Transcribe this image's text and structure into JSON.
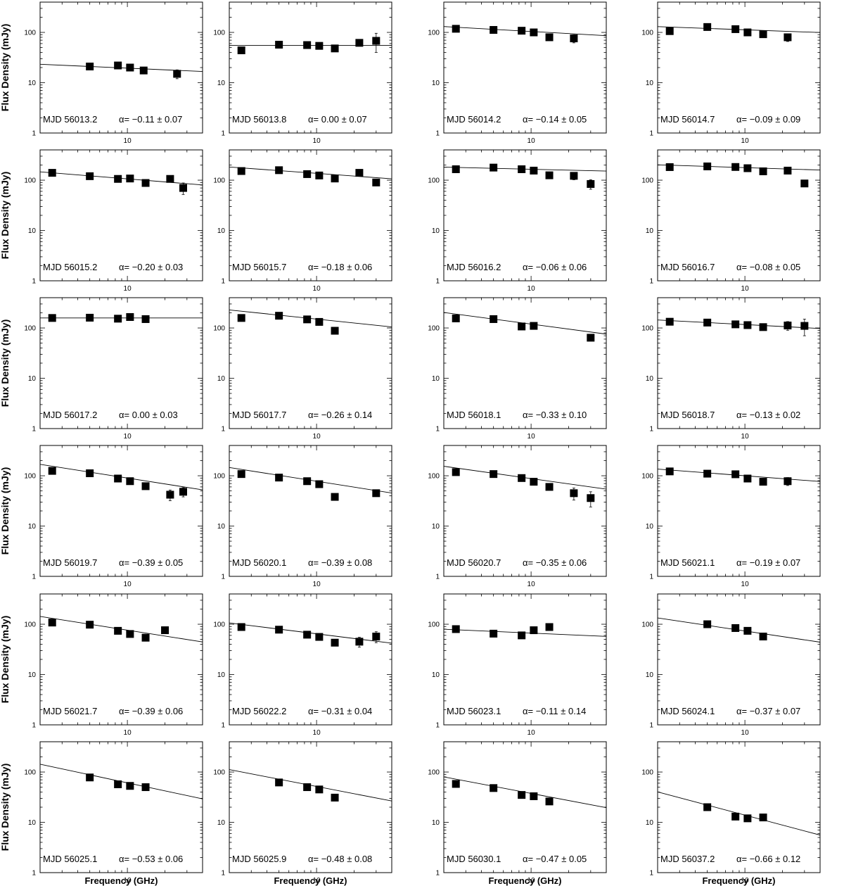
{
  "figure": {
    "ylabel": "Flux Density (mJy)",
    "xlabel": "Frequency (GHz)",
    "x_ticks": [
      10
    ],
    "y_ticks": [
      1,
      10,
      100
    ]
  },
  "chart_data": [
    {
      "type": "scatter",
      "mjd": "MJD 56013.2",
      "alpha": "α= −0.11 ± 0.07",
      "xlim": [
        2,
        40
      ],
      "ylim": [
        1,
        400
      ],
      "xscale": "log",
      "yscale": "log",
      "x": [
        5,
        8.4,
        10.5,
        13.5,
        25
      ],
      "y": [
        21,
        22,
        20,
        17.5,
        15
      ],
      "yerr": [
        0,
        0,
        0,
        0,
        3
      ],
      "fit": {
        "index": -0.11,
        "at5": 21
      }
    },
    {
      "type": "scatter",
      "mjd": "MJD 56013.8",
      "alpha": "α=  0.00 ± 0.07",
      "xlim": [
        2,
        40
      ],
      "ylim": [
        1,
        400
      ],
      "xscale": "log",
      "yscale": "log",
      "x": [
        2.5,
        5,
        8.4,
        10.5,
        14,
        22,
        30
      ],
      "y": [
        44,
        57,
        56,
        54,
        48,
        62,
        68
      ],
      "yerr": [
        0,
        0,
        0,
        0,
        0,
        0,
        28
      ],
      "fit": {
        "index": 0.0,
        "at5": 55
      }
    },
    {
      "type": "scatter",
      "mjd": "MJD 56014.2",
      "alpha": "α= −0.14 ± 0.05",
      "xlim": [
        2,
        40
      ],
      "ylim": [
        1,
        400
      ],
      "xscale": "log",
      "yscale": "log",
      "x": [
        2.5,
        5,
        8.4,
        10.5,
        14,
        22
      ],
      "y": [
        118,
        112,
        108,
        100,
        80,
        76
      ],
      "yerr": [
        0,
        0,
        0,
        0,
        0,
        14
      ],
      "fit": {
        "index": -0.14,
        "at5": 115
      }
    },
    {
      "type": "scatter",
      "mjd": "MJD 56014.7",
      "alpha": "α= −0.09 ± 0.09",
      "xlim": [
        2,
        40
      ],
      "ylim": [
        1,
        400
      ],
      "xscale": "log",
      "yscale": "log",
      "x": [
        2.5,
        5,
        8.4,
        10.5,
        14,
        22
      ],
      "y": [
        106,
        128,
        116,
        100,
        92,
        80
      ],
      "yerr": [
        0,
        0,
        0,
        0,
        0,
        14
      ],
      "fit": {
        "index": -0.09,
        "at5": 120
      }
    },
    {
      "type": "scatter",
      "mjd": "MJD 56015.2",
      "alpha": "α= −0.20 ± 0.03",
      "xlim": [
        2,
        40
      ],
      "ylim": [
        1,
        400
      ],
      "xscale": "log",
      "yscale": "log",
      "x": [
        2.5,
        5,
        8.4,
        10.5,
        14,
        22,
        28
      ],
      "y": [
        140,
        120,
        106,
        108,
        88,
        106,
        70
      ],
      "yerr": [
        0,
        0,
        0,
        0,
        0,
        0,
        18
      ],
      "fit": {
        "index": -0.2,
        "at5": 122
      }
    },
    {
      "type": "scatter",
      "mjd": "MJD 56015.7",
      "alpha": "α= −0.18 ± 0.06",
      "xlim": [
        2,
        40
      ],
      "ylim": [
        1,
        400
      ],
      "xscale": "log",
      "yscale": "log",
      "x": [
        2.5,
        5,
        8.4,
        10.5,
        14,
        22,
        30
      ],
      "y": [
        152,
        158,
        132,
        124,
        108,
        140,
        90
      ],
      "yerr": [
        0,
        0,
        0,
        0,
        0,
        14,
        0
      ],
      "fit": {
        "index": -0.18,
        "at5": 155
      }
    },
    {
      "type": "scatter",
      "mjd": "MJD 56016.2",
      "alpha": "α= −0.06 ± 0.06",
      "xlim": [
        2,
        40
      ],
      "ylim": [
        1,
        400
      ],
      "xscale": "log",
      "yscale": "log",
      "x": [
        2.5,
        5,
        8.4,
        10.5,
        14,
        22,
        30
      ],
      "y": [
        165,
        178,
        165,
        155,
        125,
        122,
        84
      ],
      "yerr": [
        0,
        0,
        0,
        0,
        0,
        20,
        18
      ],
      "fit": {
        "index": -0.06,
        "at5": 172
      }
    },
    {
      "type": "scatter",
      "mjd": "MJD 56016.7",
      "alpha": "α= −0.08 ± 0.05",
      "xlim": [
        2,
        40
      ],
      "ylim": [
        1,
        400
      ],
      "xscale": "log",
      "yscale": "log",
      "x": [
        2.5,
        5,
        8.4,
        10.5,
        14,
        22,
        30
      ],
      "y": [
        182,
        188,
        183,
        173,
        150,
        155,
        86
      ],
      "yerr": [
        0,
        0,
        0,
        0,
        0,
        18,
        0
      ],
      "fit": {
        "index": -0.08,
        "at5": 188
      }
    },
    {
      "type": "scatter",
      "mjd": "MJD 56017.2",
      "alpha": "α=  0.00 ± 0.03",
      "xlim": [
        2,
        40
      ],
      "ylim": [
        1,
        400
      ],
      "xscale": "log",
      "yscale": "log",
      "x": [
        2.5,
        5,
        8.4,
        10.5,
        14
      ],
      "y": [
        158,
        160,
        153,
        165,
        150
      ],
      "yerr": [
        0,
        0,
        0,
        0,
        0
      ],
      "fit": {
        "index": 0.0,
        "at5": 158
      }
    },
    {
      "type": "scatter",
      "mjd": "MJD 56017.7",
      "alpha": "α= −0.26 ± 0.14",
      "xlim": [
        2,
        40
      ],
      "ylim": [
        1,
        400
      ],
      "xscale": "log",
      "yscale": "log",
      "x": [
        2.5,
        5,
        8.4,
        10.5,
        14
      ],
      "y": [
        158,
        175,
        148,
        132,
        88
      ],
      "yerr": [
        0,
        0,
        0,
        0,
        0
      ],
      "fit": {
        "index": -0.26,
        "at5": 180
      }
    },
    {
      "type": "scatter",
      "mjd": "MJD 56018.1",
      "alpha": "α= −0.33 ± 0.10",
      "xlim": [
        2,
        40
      ],
      "ylim": [
        1,
        400
      ],
      "xscale": "log",
      "yscale": "log",
      "x": [
        2.5,
        5,
        8.4,
        10.5,
        30
      ],
      "y": [
        155,
        150,
        107,
        110,
        64
      ],
      "yerr": [
        0,
        0,
        0,
        0,
        0
      ],
      "fit": {
        "index": -0.33,
        "at5": 150
      }
    },
    {
      "type": "scatter",
      "mjd": "MJD 56018.7",
      "alpha": "α= −0.13 ± 0.02",
      "xlim": [
        2,
        40
      ],
      "ylim": [
        1,
        400
      ],
      "xscale": "log",
      "yscale": "log",
      "x": [
        2.5,
        5,
        8.4,
        10.5,
        14,
        22,
        30
      ],
      "y": [
        133,
        128,
        118,
        114,
        104,
        112,
        110
      ],
      "yerr": [
        0,
        0,
        0,
        0,
        0,
        22,
        40
      ],
      "fit": {
        "index": -0.13,
        "at5": 128
      }
    },
    {
      "type": "scatter",
      "mjd": "MJD 56019.7",
      "alpha": "α= −0.39 ± 0.05",
      "xlim": [
        2,
        40
      ],
      "ylim": [
        1,
        400
      ],
      "xscale": "log",
      "yscale": "log",
      "x": [
        2.5,
        5,
        8.4,
        10.5,
        14,
        22,
        28
      ],
      "y": [
        125,
        112,
        88,
        78,
        62,
        42,
        48
      ],
      "yerr": [
        0,
        0,
        0,
        0,
        0,
        10,
        10
      ],
      "fit": {
        "index": -0.39,
        "at5": 118
      }
    },
    {
      "type": "scatter",
      "mjd": "MJD 56020.1",
      "alpha": "α= −0.39 ± 0.08",
      "xlim": [
        2,
        40
      ],
      "ylim": [
        1,
        400
      ],
      "xscale": "log",
      "yscale": "log",
      "x": [
        2.5,
        5,
        8.4,
        10.5,
        14,
        30
      ],
      "y": [
        108,
        92,
        78,
        68,
        38,
        45
      ],
      "yerr": [
        0,
        0,
        0,
        0,
        0,
        0
      ],
      "fit": {
        "index": -0.39,
        "at5": 102
      }
    },
    {
      "type": "scatter",
      "mjd": "MJD 56020.7",
      "alpha": "α= −0.35 ± 0.06",
      "xlim": [
        2,
        40
      ],
      "ylim": [
        1,
        400
      ],
      "xscale": "log",
      "yscale": "log",
      "x": [
        2.5,
        5,
        8.4,
        10.5,
        14,
        22,
        30
      ],
      "y": [
        118,
        108,
        90,
        76,
        60,
        45,
        36
      ],
      "yerr": [
        0,
        0,
        0,
        0,
        0,
        12,
        12
      ],
      "fit": {
        "index": -0.35,
        "at5": 112
      }
    },
    {
      "type": "scatter",
      "mjd": "MJD 56021.1",
      "alpha": "α= −0.19 ± 0.07",
      "xlim": [
        2,
        40
      ],
      "ylim": [
        1,
        400
      ],
      "xscale": "log",
      "yscale": "log",
      "x": [
        2.5,
        5,
        8.4,
        10.5,
        14,
        22
      ],
      "y": [
        122,
        110,
        107,
        88,
        76,
        78
      ],
      "yerr": [
        0,
        0,
        0,
        0,
        0,
        14
      ],
      "fit": {
        "index": -0.19,
        "at5": 114
      }
    },
    {
      "type": "scatter",
      "mjd": "MJD 56021.7",
      "alpha": "α= −0.39 ± 0.06",
      "xlim": [
        2,
        40
      ],
      "ylim": [
        1,
        400
      ],
      "xscale": "log",
      "yscale": "log",
      "x": [
        2.5,
        5,
        8.4,
        10.5,
        14,
        20
      ],
      "y": [
        108,
        98,
        74,
        64,
        54,
        76
      ],
      "yerr": [
        0,
        0,
        0,
        0,
        0,
        0
      ],
      "fit": {
        "index": -0.39,
        "at5": 100
      }
    },
    {
      "type": "scatter",
      "mjd": "MJD 56022.2",
      "alpha": "α= −0.31 ± 0.04",
      "xlim": [
        2,
        40
      ],
      "ylim": [
        1,
        400
      ],
      "xscale": "log",
      "yscale": "log",
      "x": [
        2.5,
        5,
        8.4,
        10.5,
        14,
        22,
        30
      ],
      "y": [
        88,
        78,
        62,
        56,
        43,
        45,
        57
      ],
      "yerr": [
        0,
        0,
        0,
        0,
        0,
        10,
        14
      ],
      "fit": {
        "index": -0.31,
        "at5": 80
      }
    },
    {
      "type": "scatter",
      "mjd": "MJD 56023.1",
      "alpha": "α= −0.11 ± 0.14",
      "xlim": [
        2,
        40
      ],
      "ylim": [
        1,
        400
      ],
      "xscale": "log",
      "yscale": "log",
      "x": [
        2.5,
        5,
        8.4,
        10.5,
        14
      ],
      "y": [
        80,
        65,
        60,
        76,
        88
      ],
      "yerr": [
        0,
        0,
        0,
        0,
        0
      ],
      "fit": {
        "index": -0.11,
        "at5": 72
      }
    },
    {
      "type": "scatter",
      "mjd": "MJD 56024.1",
      "alpha": "α= −0.37 ± 0.07",
      "xlim": [
        2,
        40
      ],
      "ylim": [
        1,
        400
      ],
      "xscale": "log",
      "yscale": "log",
      "x": [
        5,
        8.4,
        10.5,
        14
      ],
      "y": [
        100,
        84,
        74,
        57
      ],
      "yerr": [
        0,
        0,
        0,
        0
      ],
      "fit": {
        "index": -0.37,
        "at5": 95
      }
    },
    {
      "type": "scatter",
      "mjd": "MJD 56025.1",
      "alpha": "α= −0.53 ± 0.06",
      "xlim": [
        2,
        40
      ],
      "ylim": [
        1,
        400
      ],
      "xscale": "log",
      "yscale": "log",
      "x": [
        5,
        8.4,
        10.5,
        14
      ],
      "y": [
        78,
        57,
        53,
        50
      ],
      "yerr": [
        0,
        0,
        0,
        0
      ],
      "fit": {
        "index": -0.53,
        "at5": 88
      }
    },
    {
      "type": "scatter",
      "mjd": "MJD 56025.9",
      "alpha": "α= −0.48 ± 0.08",
      "xlim": [
        2,
        40
      ],
      "ylim": [
        1,
        400
      ],
      "xscale": "log",
      "yscale": "log",
      "x": [
        5,
        8.4,
        10.5,
        14
      ],
      "y": [
        62,
        50,
        45,
        31
      ],
      "yerr": [
        0,
        0,
        0,
        0
      ],
      "fit": {
        "index": -0.48,
        "at5": 72
      }
    },
    {
      "type": "scatter",
      "mjd": "MJD 56030.1",
      "alpha": "α= −0.47 ± 0.05",
      "xlim": [
        2,
        40
      ],
      "ylim": [
        1,
        400
      ],
      "xscale": "log",
      "yscale": "log",
      "x": [
        2.5,
        5,
        8.4,
        10.5,
        14
      ],
      "y": [
        58,
        48,
        35,
        33,
        26
      ],
      "yerr": [
        0,
        0,
        0,
        0,
        0
      ],
      "fit": {
        "index": -0.47,
        "at5": 52
      }
    },
    {
      "type": "scatter",
      "mjd": "MJD 56037.2",
      "alpha": "α= −0.66 ± 0.12",
      "xlim": [
        2,
        40
      ],
      "ylim": [
        1,
        400
      ],
      "xscale": "log",
      "yscale": "log",
      "x": [
        5,
        8.4,
        10.5,
        14
      ],
      "y": [
        20,
        13,
        12,
        12.5
      ],
      "yerr": [
        0,
        0,
        0,
        0
      ],
      "fit": {
        "index": -0.66,
        "at5": 22
      }
    }
  ],
  "colors": {
    "marker": "#000000",
    "axis": "#000000",
    "fit": "#000000",
    "background": "#ffffff"
  }
}
